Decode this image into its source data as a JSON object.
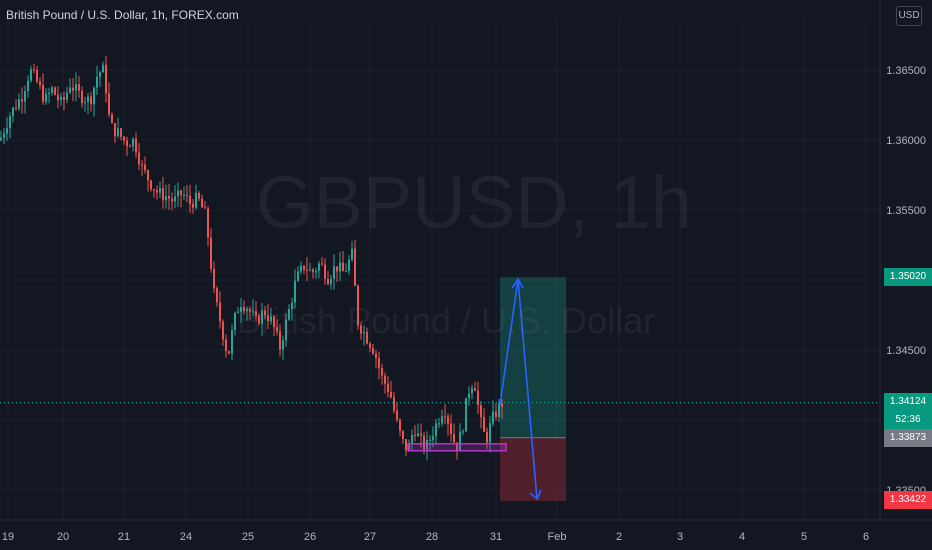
{
  "header": {
    "title": "British Pound / U.S. Dollar, 1h, FOREX.com",
    "currency": "USD"
  },
  "watermark": {
    "symbol": "GBPUSD, 1h",
    "description": "British Pound / U.S. Dollar"
  },
  "price_tags": {
    "target": "1.35020",
    "last_price": "1.34124",
    "countdown": "52:36",
    "entry": "1.33873",
    "stop": "1.33422"
  },
  "colors": {
    "background": "#131722",
    "up": "#26a69a",
    "down": "#ef5350",
    "target_zone": "#1b8d7d",
    "stop_zone": "#9c2a3a",
    "arrow": "#2962ff",
    "support_box": "#b436c9"
  },
  "chart_data": {
    "type": "candlestick",
    "x_tick_labels": [
      "19",
      "20",
      "21",
      "24",
      "25",
      "26",
      "27",
      "28",
      "31",
      "Feb",
      "2",
      "3",
      "4",
      "5",
      "6"
    ],
    "y_tick_labels": [
      "1.36500",
      "1.36000",
      "1.35500",
      "1.35000",
      "1.34500",
      "1.34000",
      "1.33500"
    ],
    "ylim": [
      1.3323,
      1.3682
    ],
    "grid": true,
    "trajectory": {
      "note_source": "approximate close path read from candles",
      "points": [
        [
          0,
          1.36
        ],
        [
          10,
          1.3618
        ],
        [
          22,
          1.3632
        ],
        [
          30,
          1.365
        ],
        [
          38,
          1.364
        ],
        [
          45,
          1.3628
        ],
        [
          52,
          1.3636
        ],
        [
          62,
          1.3625
        ],
        [
          70,
          1.364
        ],
        [
          80,
          1.3632
        ],
        [
          90,
          1.3628
        ],
        [
          98,
          1.3648
        ],
        [
          104,
          1.365
        ],
        [
          110,
          1.361
        ],
        [
          118,
          1.3605
        ],
        [
          126,
          1.3598
        ],
        [
          134,
          1.36
        ],
        [
          142,
          1.358
        ],
        [
          150,
          1.357
        ],
        [
          158,
          1.3562
        ],
        [
          166,
          1.356
        ],
        [
          174,
          1.3556
        ],
        [
          182,
          1.3562
        ],
        [
          190,
          1.3555
        ],
        [
          198,
          1.3558
        ],
        [
          206,
          1.3545
        ],
        [
          214,
          1.349
        ],
        [
          222,
          1.3465
        ],
        [
          228,
          1.3445
        ],
        [
          234,
          1.347
        ],
        [
          240,
          1.3485
        ],
        [
          248,
          1.348
        ],
        [
          256,
          1.347
        ],
        [
          264,
          1.3478
        ],
        [
          272,
          1.347
        ],
        [
          280,
          1.3452
        ],
        [
          288,
          1.3475
        ],
        [
          296,
          1.35
        ],
        [
          304,
          1.351
        ],
        [
          312,
          1.3505
        ],
        [
          320,
          1.3512
        ],
        [
          328,
          1.3502
        ],
        [
          336,
          1.351
        ],
        [
          344,
          1.3505
        ],
        [
          352,
          1.3518
        ],
        [
          358,
          1.347
        ],
        [
          366,
          1.346
        ],
        [
          374,
          1.345
        ],
        [
          382,
          1.343
        ],
        [
          390,
          1.342
        ],
        [
          396,
          1.34
        ],
        [
          402,
          1.3385
        ],
        [
          408,
          1.3378
        ],
        [
          414,
          1.3395
        ],
        [
          420,
          1.3385
        ],
        [
          426,
          1.338
        ],
        [
          432,
          1.339
        ],
        [
          438,
          1.34
        ],
        [
          444,
          1.341
        ],
        [
          450,
          1.3395
        ],
        [
          456,
          1.338
        ],
        [
          462,
          1.3392
        ],
        [
          468,
          1.342
        ],
        [
          474,
          1.343
        ],
        [
          480,
          1.34
        ],
        [
          486,
          1.3385
        ],
        [
          492,
          1.34
        ],
        [
          498,
          1.3408
        ],
        [
          502,
          1.3412
        ]
      ]
    },
    "annotations": {
      "entry_price": 1.33873,
      "target_price": 1.3502,
      "stop_price": 1.33422,
      "last_price": 1.34124,
      "support_box_range": [
        1.3378,
        1.3383
      ]
    }
  }
}
